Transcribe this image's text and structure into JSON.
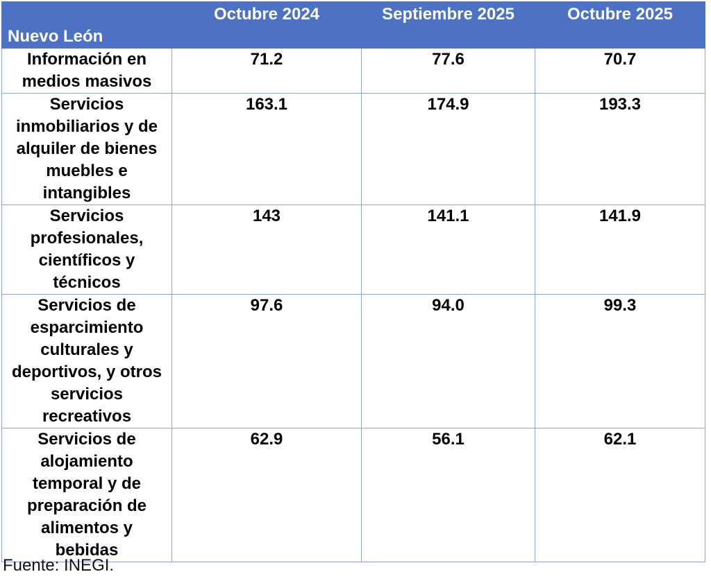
{
  "table": {
    "corner": "Nuevo León",
    "columns": [
      "Octubre 2024",
      "Septiembre 2025",
      "Octubre 2025"
    ],
    "rows": [
      [
        "Información en medios masivos",
        "71.2",
        "77.6",
        "70.7"
      ],
      [
        "Servicios inmobiliarios y de alquiler de bienes muebles e intangibles",
        "163.1",
        "174.9",
        "193.3"
      ],
      [
        "Servicios profesionales, científicos y técnicos",
        "143",
        "141.1",
        "141.9"
      ],
      [
        "Servicios de esparcimiento culturales y deportivos, y otros servicios recreativos",
        "97.6",
        "94.0",
        "99.3"
      ],
      [
        "Servicios de alojamiento temporal y de preparación de alimentos y bebidas",
        "62.9",
        "56.1",
        "62.1"
      ]
    ]
  },
  "source": "Fuente: INEGI."
}
